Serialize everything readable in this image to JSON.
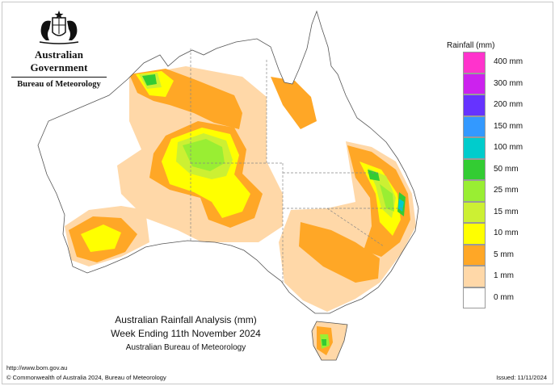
{
  "header": {
    "government": "Australian Government",
    "bureau": "Bureau of Meteorology"
  },
  "map": {
    "land_color": "#ffffff",
    "outline_color": "#555555",
    "state_border_color": "#888888"
  },
  "legend": {
    "title": "Rainfall (mm)",
    "classes": [
      {
        "label": "400 mm",
        "color": "#ff33cc"
      },
      {
        "label": "300 mm",
        "color": "#cc22ee"
      },
      {
        "label": "200 mm",
        "color": "#6633ff"
      },
      {
        "label": "150 mm",
        "color": "#3399ff"
      },
      {
        "label": "100 mm",
        "color": "#00cccc"
      },
      {
        "label": "50 mm",
        "color": "#33cc33"
      },
      {
        "label": "25 mm",
        "color": "#99ee33"
      },
      {
        "label": "15 mm",
        "color": "#ccf033"
      },
      {
        "label": "10 mm",
        "color": "#ffff00"
      },
      {
        "label": "5 mm",
        "color": "#ffa726"
      },
      {
        "label": "1 mm",
        "color": "#ffd8a8"
      },
      {
        "label": "0 mm",
        "color": "#ffffff"
      }
    ]
  },
  "caption": {
    "title": "Australian Rainfall Analysis (mm)",
    "period": "Week Ending 11th November 2024",
    "agency": "Australian Bureau of Meteorology"
  },
  "footer": {
    "url": "http://www.bom.gov.au",
    "copyright": "© Commonwealth of Australia 2024, Bureau of Meteorology",
    "issued": "Issued: 11/11/2024"
  }
}
